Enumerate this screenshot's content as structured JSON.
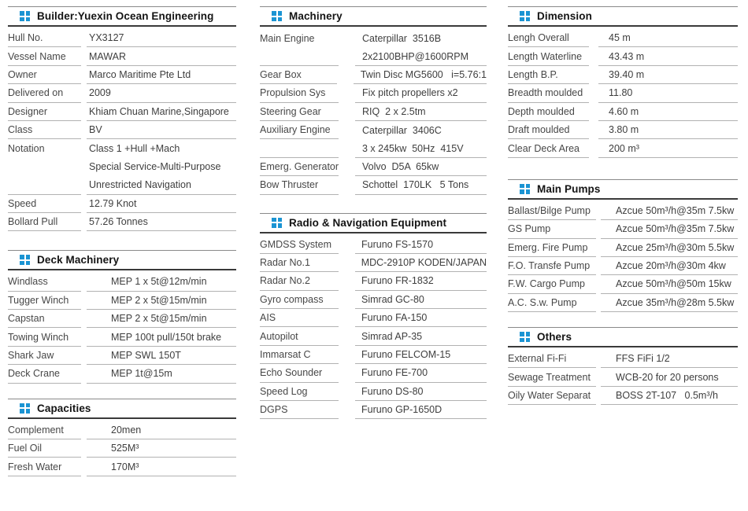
{
  "theme": {
    "accent_blue": "#1b94d3",
    "title_text": "#141414",
    "label_text": "#474747",
    "value_text": "#3e3e3e",
    "section_top_line": "#8a8a8a",
    "header_underline": "#3a3a3a",
    "row_line": "#b2b2b2",
    "background": "#ffffff"
  },
  "icons": {
    "section_bullet": "grid-2x2-squares"
  },
  "sections": {
    "builder": {
      "title": "Builder:Yuexin Ocean Engineering",
      "rows": [
        {
          "label": "Hull No.",
          "value": "YX3127"
        },
        {
          "label": "Vessel Name",
          "value": "MAWAR"
        },
        {
          "label": "Owner",
          "value": "Marco Maritime Pte Ltd"
        },
        {
          "label": "Delivered on",
          "value": "2009"
        },
        {
          "label": "Designer",
          "value": "Khiam Chuan Marine,Singapore"
        },
        {
          "label": "Class",
          "value": "BV"
        },
        {
          "label": "Notation",
          "value": "Class 1 +Hull +Mach",
          "lb": false,
          "vb": false
        },
        {
          "label": "",
          "value": "Special Service-Multi-Purpose",
          "lb": false,
          "vb": false
        },
        {
          "label": "",
          "value": "Unrestricted Navigation"
        },
        {
          "label": "Speed",
          "value": "12.79 Knot"
        },
        {
          "label": "Bollard Pull",
          "value": "57.26 Tonnes"
        }
      ]
    },
    "deck_machinery": {
      "title": "Deck Machinery",
      "rows": [
        {
          "label": "Windlass",
          "value": "MEP 1 x 5t@12m/min"
        },
        {
          "label": "Tugger Winch",
          "value": "MEP 2 x 5t@15m/min"
        },
        {
          "label": "Capstan",
          "value": "MEP 2 x 5t@15m/min"
        },
        {
          "label": "Towing Winch",
          "value": "MEP 100t pull/150t brake"
        },
        {
          "label": "Shark Jaw",
          "value": "MEP SWL 150T"
        },
        {
          "label": "Deck Crane",
          "value": "MEP 1t@15m"
        }
      ]
    },
    "capacities": {
      "title": "Capacities",
      "rows": [
        {
          "label": "Complement",
          "value": "20men"
        },
        {
          "label": "Fuel Oil",
          "value": "525M³"
        },
        {
          "label": "Fresh Water",
          "value": "170M³"
        }
      ]
    },
    "machinery": {
      "title": "Machinery",
      "rows": [
        {
          "label": "Main Engine",
          "value": "Caterpillar  3516B",
          "lb": false,
          "vb": false
        },
        {
          "label": "",
          "value": "2x2100BHP@1600RPM"
        },
        {
          "label": "Gear Box",
          "value": "Twin Disc MG5600   i=5.76:1"
        },
        {
          "label": "Propulsion Sys",
          "value": "Fix pitch propellers x2"
        },
        {
          "label": "Steering Gear",
          "value": "RIQ  2 x 2.5tm"
        },
        {
          "label": "Auxiliary Engine",
          "value": "Caterpillar  3406C",
          "vb": false
        },
        {
          "label": "",
          "value": "3 x 245kw  50Hz  415V"
        },
        {
          "label": "Emerg. Generator",
          "value": "Volvo  D5A  65kw"
        },
        {
          "label": "Bow Thruster",
          "value": "Schottel  170LK   5 Tons"
        }
      ]
    },
    "radio_nav": {
      "title": "Radio & Navigation Equipment",
      "rows": [
        {
          "label": "GMDSS System",
          "value": "Furuno FS-1570"
        },
        {
          "label": "Radar No.1",
          "value": "MDC-2910P KODEN/JAPAN"
        },
        {
          "label": "Radar No.2",
          "value": "Furuno FR-1832"
        },
        {
          "label": "Gyro compass",
          "value": "Simrad GC-80"
        },
        {
          "label": "AIS",
          "value": "Furuno FA-150"
        },
        {
          "label": "Autopilot",
          "value": "Simrad AP-35"
        },
        {
          "label": "Immarsat C",
          "value": "Furuno FELCOM-15"
        },
        {
          "label": "Echo Sounder",
          "value": "Furuno FE-700"
        },
        {
          "label": "Speed Log",
          "value": "Furuno DS-80"
        },
        {
          "label": "DGPS",
          "value": "Furuno GP-1650D"
        }
      ]
    },
    "dimension": {
      "title": "Dimension",
      "rows": [
        {
          "label": "Lengh Overall",
          "value": "45 m"
        },
        {
          "label": "Length Waterline",
          "value": "43.43 m"
        },
        {
          "label": "Length B.P.",
          "value": "39.40 m"
        },
        {
          "label": "Breadth moulded",
          "value": "11.80"
        },
        {
          "label": "Depth moulded",
          "value": "4.60 m"
        },
        {
          "label": "Draft moulded",
          "value": "3.80 m"
        },
        {
          "label": "Clear Deck Area",
          "value": "200 m³"
        }
      ]
    },
    "main_pumps": {
      "title": "Main Pumps",
      "rows": [
        {
          "label": "Ballast/Bilge Pump",
          "value": "Azcue 50m³/h@35m 7.5kw"
        },
        {
          "label": "GS Pump",
          "value": "Azcue 50m³/h@35m 7.5kw"
        },
        {
          "label": "Emerg. Fire Pump",
          "value": "Azcue 25m³/h@30m 5.5kw"
        },
        {
          "label": "F.O. Transfe Pump",
          "value": "Azcue 20m³/h@30m 4kw"
        },
        {
          "label": "F.W. Cargo Pump",
          "value": "Azcue 50m³/h@50m 15kw"
        },
        {
          "label": "A.C. S.w. Pump",
          "value": "Azcue 35m³/h@28m 5.5kw"
        }
      ]
    },
    "others": {
      "title": "Others",
      "rows": [
        {
          "label": "External Fi-Fi",
          "value": "FFS FiFi 1/2"
        },
        {
          "label": "Sewage Treatment",
          "value": "WCB-20 for 20 persons"
        },
        {
          "label": "Oily Water Separat",
          "value": "BOSS 2T-107   0.5m³/h"
        }
      ]
    }
  }
}
